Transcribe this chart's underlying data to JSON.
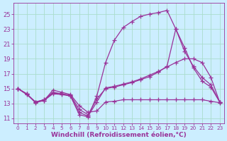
{
  "background_color": "#cceeff",
  "grid_color": "#aaddcc",
  "line_color": "#993399",
  "marker": "+",
  "marker_size": 4,
  "marker_lw": 0.9,
  "linewidth": 0.9,
  "xlabel": "Windchill (Refroidissement éolien,°C)",
  "xlabel_fontsize": 6.5,
  "ylabel_ticks": [
    11,
    13,
    15,
    17,
    19,
    21,
    23,
    25
  ],
  "xlim": [
    -0.5,
    23.5
  ],
  "ylim": [
    10.3,
    26.5
  ],
  "xticks": [
    0,
    1,
    2,
    3,
    4,
    5,
    6,
    7,
    8,
    9,
    10,
    11,
    12,
    13,
    14,
    15,
    16,
    17,
    18,
    19,
    20,
    21,
    22,
    23
  ],
  "curves": [
    {
      "x": [
        0,
        1,
        2,
        3,
        4,
        5,
        6,
        7,
        8,
        9,
        10,
        11,
        12,
        13,
        14,
        15,
        16,
        17,
        18,
        19,
        20,
        21,
        22,
        23
      ],
      "y": [
        15.0,
        14.3,
        13.1,
        13.4,
        14.8,
        14.5,
        14.2,
        12.7,
        11.8,
        12.0,
        13.2,
        13.3,
        13.5,
        13.5,
        13.5,
        13.5,
        13.5,
        13.5,
        13.5,
        13.5,
        13.5,
        13.5,
        13.3,
        13.1
      ]
    },
    {
      "x": [
        0,
        1,
        2,
        3,
        4,
        5,
        6,
        7,
        8,
        9,
        10,
        11,
        12,
        13,
        14,
        15,
        16,
        17,
        18,
        19,
        20,
        21,
        22,
        23
      ],
      "y": [
        15.0,
        14.2,
        13.2,
        13.5,
        14.5,
        14.3,
        14.0,
        11.5,
        11.2,
        14.0,
        18.5,
        21.5,
        23.2,
        24.0,
        24.7,
        25.0,
        25.2,
        25.5,
        23.0,
        20.0,
        18.0,
        16.5,
        15.5,
        13.2
      ]
    },
    {
      "x": [
        0,
        1,
        2,
        3,
        4,
        5,
        6,
        7,
        8,
        9,
        10,
        11,
        12,
        13,
        14,
        15,
        16,
        17,
        18,
        19,
        20,
        21,
        22,
        23
      ],
      "y": [
        15.0,
        14.3,
        13.2,
        13.4,
        14.3,
        14.2,
        14.0,
        11.8,
        11.3,
        13.2,
        15.1,
        15.3,
        15.6,
        15.9,
        16.3,
        16.8,
        17.3,
        17.9,
        18.5,
        19.0,
        19.0,
        18.5,
        16.5,
        13.2
      ]
    },
    {
      "x": [
        0,
        1,
        2,
        3,
        4,
        5,
        6,
        7,
        8,
        9,
        10,
        11,
        12,
        13,
        14,
        15,
        16,
        17,
        18,
        19,
        20,
        21,
        22,
        23
      ],
      "y": [
        15.0,
        14.3,
        13.2,
        13.5,
        14.4,
        14.3,
        14.1,
        12.2,
        11.5,
        13.6,
        15.0,
        15.2,
        15.5,
        15.8,
        16.2,
        16.6,
        17.2,
        18.0,
        23.0,
        20.5,
        17.8,
        16.0,
        15.2,
        13.2
      ]
    }
  ]
}
